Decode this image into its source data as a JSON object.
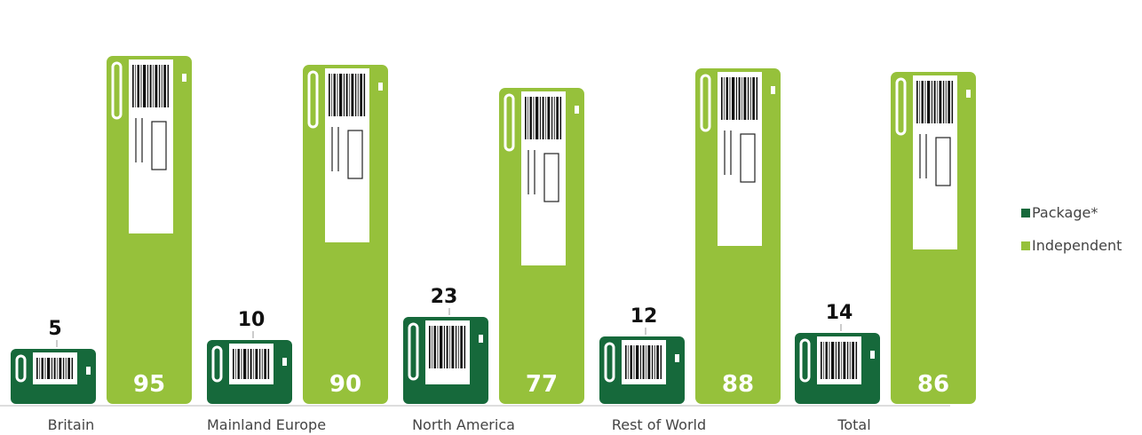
{
  "chart_data": {
    "type": "bar",
    "categories": [
      "Britain",
      "Mainland Europe",
      "North America",
      "Rest of World",
      "Total"
    ],
    "series": [
      {
        "name": "Package*",
        "values": [
          5,
          10,
          23,
          12,
          14
        ],
        "color": "#16693b"
      },
      {
        "name": "Independent",
        "values": [
          95,
          90,
          77,
          88,
          86
        ],
        "color": "#96c13b"
      }
    ],
    "ylim": [
      0,
      100
    ],
    "grid": false,
    "legend_position": "right",
    "data_labels": true
  }
}
